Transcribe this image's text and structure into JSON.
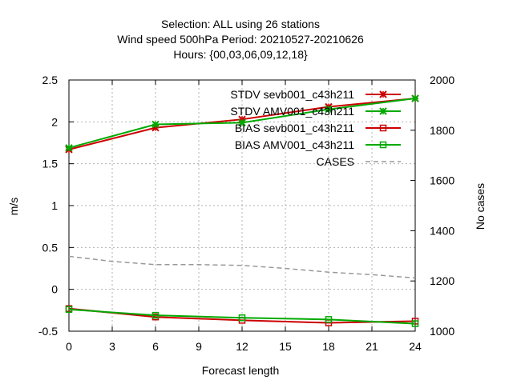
{
  "chart_data": {
    "type": "line",
    "title_lines": [
      "Selection: ALL using    26 stations",
      "Wind speed 500hPa   Period: 20210527-20210626",
      "Hours: {00,03,06,09,12,18}"
    ],
    "xlabel": "Forecast length",
    "ylabel": "m/s",
    "y2label": "No cases",
    "xlim": [
      0,
      24
    ],
    "ylim": [
      -0.5,
      2.5
    ],
    "y2lim": [
      1000,
      2000
    ],
    "xticks": [
      "0",
      "3",
      "6",
      "9",
      "12",
      "15",
      "18",
      "21",
      "24"
    ],
    "yticks": [
      "-0.5",
      "0",
      "0.5",
      "1",
      "1.5",
      "2",
      "2.5"
    ],
    "y2ticks": [
      "1000",
      "1200",
      "1400",
      "1600",
      "1800",
      "2000"
    ],
    "grid": true,
    "legend_position": "top-right",
    "series": [
      {
        "name": "STDV sevb001_c43h211",
        "color": "#cc0000",
        "marker": "x",
        "axis": "y",
        "x": [
          0,
          6,
          12,
          18,
          24
        ],
        "values": [
          1.67,
          1.93,
          2.03,
          2.18,
          2.28
        ]
      },
      {
        "name": "STDV AMV001_c43h211",
        "color": "#00aa00",
        "marker": "x",
        "axis": "y",
        "x": [
          0,
          6,
          12,
          18,
          24
        ],
        "values": [
          1.69,
          1.97,
          1.99,
          2.15,
          2.28
        ]
      },
      {
        "name": "BIAS sevb001_c43h211",
        "color": "#cc0000",
        "marker": "square",
        "axis": "y",
        "x": [
          0,
          6,
          12,
          18,
          24
        ],
        "values": [
          -0.23,
          -0.33,
          -0.37,
          -0.4,
          -0.38
        ]
      },
      {
        "name": "BIAS AMV001_c43h211",
        "color": "#00aa00",
        "marker": "square",
        "axis": "y",
        "x": [
          0,
          6,
          12,
          18,
          24
        ],
        "values": [
          -0.24,
          -0.31,
          -0.34,
          -0.36,
          -0.41
        ]
      },
      {
        "name": "CASES",
        "color": "#999999",
        "marker": "none",
        "dashed": true,
        "axis": "y2",
        "x": [
          0,
          3,
          6,
          9,
          12,
          15,
          18,
          21,
          24
        ],
        "values": [
          1298,
          1278,
          1265,
          1265,
          1262,
          1250,
          1235,
          1225,
          1212
        ]
      }
    ]
  }
}
